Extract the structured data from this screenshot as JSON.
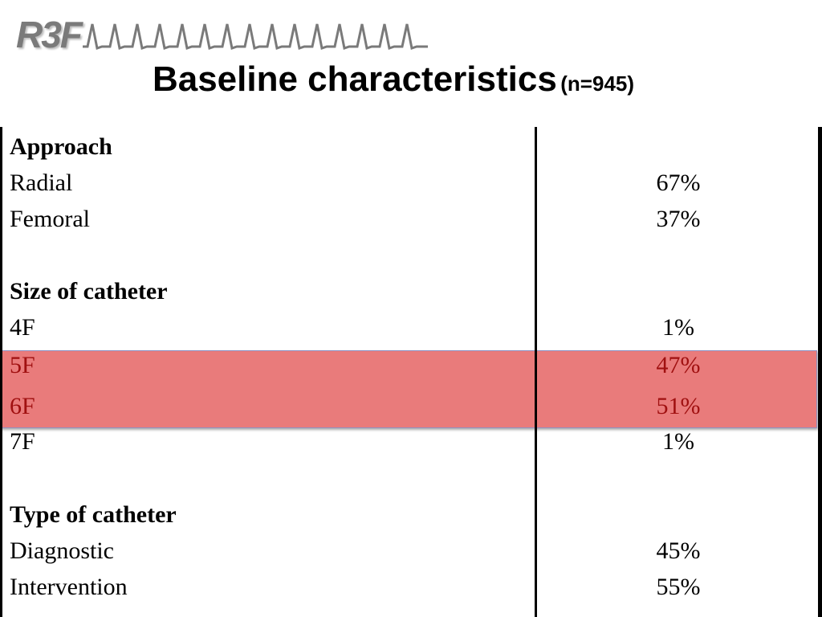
{
  "logo": {
    "text": "R3F"
  },
  "title": {
    "main": "Baseline characteristics",
    "sub": "(n=945)"
  },
  "table": {
    "rows": [
      {
        "label": "Approach",
        "value": "",
        "heading": true
      },
      {
        "label": "Radial",
        "value": "67%"
      },
      {
        "label": "Femoral",
        "value": "37%"
      },
      {
        "label": "Size of catheter",
        "value": "",
        "heading": true
      },
      {
        "label": "4F",
        "value": "1%"
      },
      {
        "label": "5F",
        "value": "47%",
        "highlighted": true
      },
      {
        "label": "6F",
        "value": "51%",
        "highlighted": true
      },
      {
        "label": "7F",
        "value": "1%"
      },
      {
        "label": "Type of catheter",
        "value": "",
        "heading": true
      },
      {
        "label": "Diagnostic",
        "value": "45%"
      },
      {
        "label": "Intervention",
        "value": "55%"
      }
    ]
  },
  "colors": {
    "highlight_fill": "#e97b7b",
    "highlight_text": "#a01010",
    "logo_gray": "#7a7a7a"
  }
}
